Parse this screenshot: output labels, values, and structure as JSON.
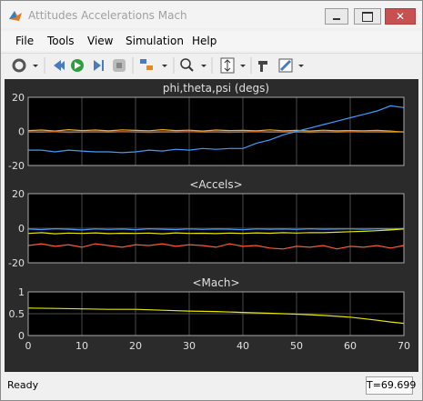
{
  "window": {
    "title": "Attitudes Accelerations Mach"
  },
  "menu": [
    "File",
    "Tools",
    "View",
    "Simulation",
    "Help"
  ],
  "status": {
    "text": "Ready",
    "time": "T=69.699"
  },
  "chart_data": [
    {
      "type": "line",
      "title": "phi,theta,psi (degs)",
      "x": [
        0,
        2.5,
        5,
        7.5,
        10,
        12.5,
        15,
        17.5,
        20,
        22.5,
        25,
        27.5,
        30,
        32.5,
        35,
        37.5,
        40,
        42.5,
        45,
        47.5,
        50,
        52.5,
        55,
        57.5,
        60,
        62.5,
        65,
        67.5,
        70
      ],
      "series": [
        {
          "color": "#edb120",
          "values": [
            0.5,
            0.8,
            0.2,
            1,
            0.5,
            0.8,
            0.3,
            0.9,
            0.6,
            0.4,
            1,
            0.5,
            0.7,
            0.2,
            0.8,
            0.5,
            0.6,
            0.3,
            0.9,
            0.4,
            0.6,
            0.2,
            0.7,
            0.3,
            0.5,
            0.4,
            0.6,
            0.2,
            -0.5
          ]
        },
        {
          "color": "#d95319",
          "values": [
            -0.3,
            -0.5,
            -0.2,
            -0.6,
            -0.4,
            -0.3,
            -0.5,
            -0.2,
            -0.4,
            -0.6,
            -0.3,
            -0.5,
            -0.2,
            -0.4,
            -0.3,
            -0.6,
            -0.4,
            -0.2,
            -0.5,
            -0.3,
            -0.4,
            -0.6,
            -0.3,
            -0.5,
            -0.2,
            -0.4,
            -0.3,
            -0.5,
            -0.4
          ]
        },
        {
          "color": "#3f9bff",
          "values": [
            -11,
            -11,
            -12,
            -11,
            -11.5,
            -12,
            -12,
            -12.5,
            -12,
            -11,
            -11.5,
            -10.5,
            -11,
            -10,
            -10.5,
            -10,
            -10,
            -7,
            -5,
            -2,
            0,
            2,
            4,
            6,
            8,
            10,
            12,
            15,
            14
          ]
        }
      ],
      "xlim": [
        0,
        70
      ],
      "xticks": [
        0,
        10,
        20,
        30,
        40,
        50,
        60,
        70
      ],
      "ylim": [
        -20,
        20
      ],
      "yticks": [
        -20,
        0,
        20
      ],
      "grid": true
    },
    {
      "type": "line",
      "title": "<Accels>",
      "x": [
        0,
        2.5,
        5,
        7.5,
        10,
        12.5,
        15,
        17.5,
        20,
        22.5,
        25,
        27.5,
        30,
        32.5,
        35,
        37.5,
        40,
        42.5,
        45,
        47.5,
        50,
        52.5,
        55,
        57.5,
        60,
        62.5,
        65,
        67.5,
        70
      ],
      "series": [
        {
          "color": "#3f9bff",
          "values": [
            -0.5,
            -0.8,
            -0.3,
            -0.6,
            -1,
            -0.4,
            -0.7,
            -0.5,
            -0.9,
            -0.3,
            -0.6,
            -0.8,
            -0.4,
            -0.7,
            -0.5,
            -0.6,
            -0.9,
            -0.4,
            -0.6,
            -0.5,
            -0.7,
            -0.3,
            -0.6,
            -0.5,
            -0.4,
            -0.6,
            -0.3,
            -0.5,
            -0.2
          ]
        },
        {
          "color": "#e6e600",
          "values": [
            -3,
            -2.6,
            -3.2,
            -2.8,
            -3,
            -2.7,
            -3.1,
            -2.9,
            -3,
            -2.8,
            -3.2,
            -2.7,
            -3,
            -2.9,
            -3.1,
            -2.8,
            -3,
            -2.7,
            -2.9,
            -2.6,
            -2.8,
            -2.5,
            -2.6,
            -2.3,
            -2,
            -1.8,
            -1.4,
            -1,
            -0.4
          ]
        },
        {
          "color": "#ff5a2a",
          "values": [
            -10,
            -9,
            -10.5,
            -9.5,
            -11,
            -9,
            -10,
            -11,
            -9.5,
            -10,
            -9,
            -10.5,
            -9.5,
            -10,
            -11,
            -9,
            -10.5,
            -10,
            -11.5,
            -12,
            -10.5,
            -11,
            -10,
            -12,
            -10.5,
            -11,
            -10,
            -11.5,
            -10
          ]
        }
      ],
      "xlim": [
        0,
        70
      ],
      "xticks": [
        0,
        10,
        20,
        30,
        40,
        50,
        60,
        70
      ],
      "ylim": [
        -20,
        20
      ],
      "yticks": [
        -20,
        0,
        20
      ],
      "grid": true
    },
    {
      "type": "line",
      "title": "<Mach>",
      "x": [
        0,
        5,
        10,
        15,
        20,
        25,
        30,
        35,
        40,
        45,
        50,
        55,
        60,
        63,
        65,
        67.5,
        70
      ],
      "series": [
        {
          "color": "#e6e600",
          "values": [
            0.63,
            0.62,
            0.61,
            0.6,
            0.6,
            0.58,
            0.56,
            0.55,
            0.53,
            0.51,
            0.49,
            0.46,
            0.42,
            0.38,
            0.35,
            0.31,
            0.28
          ]
        }
      ],
      "xlim": [
        0,
        70
      ],
      "xticks": [
        0,
        10,
        20,
        30,
        40,
        50,
        60,
        70
      ],
      "ylim": [
        0,
        1
      ],
      "yticks": [
        0,
        0.5,
        1
      ],
      "grid": true
    }
  ]
}
